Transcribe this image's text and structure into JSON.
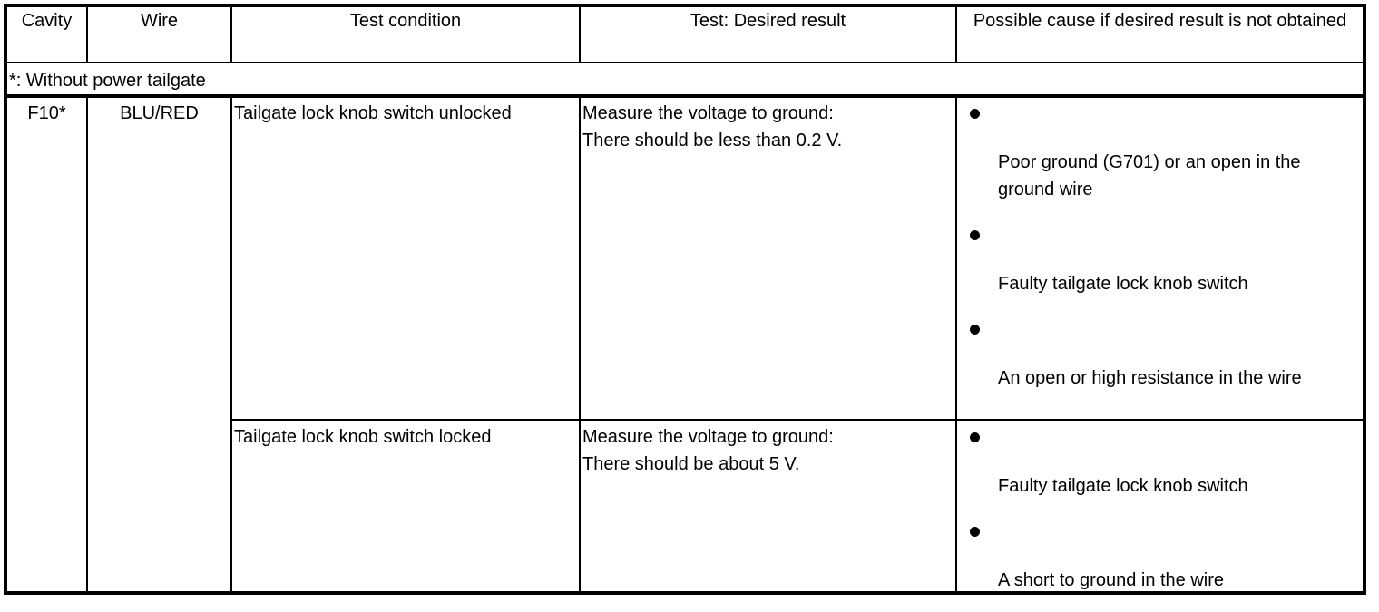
{
  "headers": [
    "Cavity",
    "Wire",
    "Test condition",
    "Test: Desired result",
    "Possible cause if desired result is not obtained"
  ],
  "note": "*: Without power tailgate",
  "cavity": "F10*",
  "wire": "BLU/RED",
  "rows": [
    {
      "condition": "Tailgate lock knob switch unlocked",
      "result": [
        "Measure the voltage to ground:",
        "There should be less than 0.2 V."
      ],
      "causes": [
        "Poor ground (G701) or an open in the ground wire",
        "Faulty tailgate lock knob switch",
        "An open or high resistance in the wire"
      ]
    },
    {
      "condition": "Tailgate lock knob switch locked",
      "result": [
        "Measure the voltage to ground:",
        "There should be about 5 V."
      ],
      "causes": [
        "Faulty tailgate lock knob switch",
        "A short to ground in the wire"
      ]
    }
  ]
}
